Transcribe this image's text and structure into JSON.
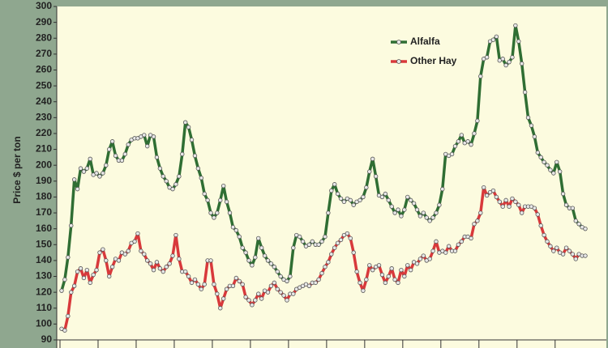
{
  "chart_data": {
    "type": "line",
    "y_label": "Price $ per ton",
    "categories": [
      null,
      null,
      null,
      null,
      null,
      null,
      null,
      null,
      null,
      null,
      null,
      null,
      null,
      null,
      null,
      null,
      null,
      null,
      null,
      null,
      null,
      null,
      null,
      null,
      null,
      null,
      null,
      null,
      null,
      null,
      null,
      null,
      null,
      null,
      null,
      null,
      null,
      null,
      null,
      null,
      null,
      null,
      null,
      null,
      null,
      null,
      null,
      null,
      null,
      null,
      null,
      null,
      null,
      null,
      null,
      null,
      null,
      null,
      null,
      null,
      null,
      null,
      null,
      null,
      null,
      null,
      null,
      null,
      null,
      null,
      null,
      null,
      null,
      null,
      null,
      null,
      null,
      null,
      null,
      null,
      null,
      null,
      null,
      null,
      null,
      null,
      null,
      null,
      null,
      null,
      null,
      null,
      null,
      null,
      null,
      null,
      null,
      null,
      null,
      null,
      null,
      null,
      null,
      null,
      null,
      null,
      null,
      null,
      null,
      null,
      null,
      null,
      null,
      null,
      null,
      null,
      null,
      null,
      null,
      null,
      null,
      null,
      null,
      null,
      null,
      null,
      null,
      null,
      null,
      null,
      null,
      null,
      null,
      null,
      null,
      null,
      null,
      null,
      null,
      null,
      null,
      null,
      null,
      null,
      null,
      null,
      null,
      null,
      null,
      null,
      null,
      null,
      null,
      null,
      null,
      null,
      null,
      null,
      null,
      null,
      null,
      null,
      null,
      null,
      null,
      null
    ],
    "series": [
      {
        "name": "Alfalfa",
        "color": "#2f6e33",
        "values": [
          121,
          128,
          142,
          162,
          191,
          185,
          198,
          196,
          198,
          204,
          194,
          195,
          193,
          195,
          200,
          210,
          215,
          206,
          203,
          203,
          207,
          213,
          216,
          217,
          217,
          218,
          219,
          212,
          219,
          218,
          205,
          198,
          193,
          190,
          186,
          185,
          188,
          193,
          207,
          227,
          224,
          216,
          206,
          198,
          192,
          182,
          178,
          170,
          167,
          170,
          178,
          187,
          177,
          170,
          161,
          159,
          155,
          148,
          145,
          140,
          137,
          142,
          154,
          148,
          143,
          140,
          138,
          136,
          133,
          130,
          128,
          127,
          130,
          148,
          156,
          155,
          152,
          149,
          150,
          152,
          150,
          150,
          152,
          155,
          170,
          184,
          188,
          182,
          179,
          177,
          179,
          178,
          175,
          177,
          178,
          180,
          186,
          196,
          204,
          193,
          181,
          180,
          182,
          178,
          174,
          170,
          172,
          168,
          172,
          180,
          178,
          176,
          172,
          168,
          170,
          167,
          165,
          167,
          170,
          175,
          185,
          207,
          206,
          207,
          212,
          215,
          219,
          214,
          215,
          213,
          220,
          228,
          256,
          267,
          268,
          278,
          279,
          281,
          266,
          267,
          263,
          265,
          268,
          288,
          278,
          264,
          246,
          230,
          225,
          218,
          208,
          205,
          202,
          200,
          197,
          195,
          202,
          196,
          182,
          175,
          173,
          173,
          165,
          163,
          161,
          160
        ]
      },
      {
        "name": "Other Hay",
        "color": "#d8393b",
        "values": [
          97,
          96,
          105,
          120,
          124,
          133,
          135,
          129,
          134,
          126,
          131,
          134,
          145,
          147,
          140,
          130,
          136,
          141,
          140,
          145,
          144,
          146,
          151,
          152,
          157,
          146,
          144,
          140,
          138,
          134,
          139,
          135,
          133,
          136,
          138,
          143,
          156,
          141,
          133,
          133,
          130,
          126,
          128,
          125,
          122,
          125,
          140,
          140,
          125,
          119,
          110,
          116,
          122,
          124,
          124,
          129,
          127,
          125,
          117,
          115,
          112,
          115,
          119,
          116,
          121,
          120,
          124,
          126,
          122,
          120,
          118,
          115,
          119,
          119,
          122,
          123,
          124,
          125,
          124,
          126,
          126,
          128,
          132,
          136,
          139,
          144,
          148,
          151,
          153,
          156,
          157,
          154,
          145,
          133,
          126,
          121,
          128,
          137,
          134,
          136,
          137,
          131,
          126,
          130,
          135,
          128,
          126,
          134,
          130,
          137,
          134,
          139,
          138,
          141,
          143,
          140,
          141,
          146,
          152,
          145,
          146,
          145,
          149,
          146,
          146,
          150,
          152,
          155,
          155,
          154,
          163,
          165,
          170,
          186,
          181,
          183,
          184,
          180,
          177,
          174,
          178,
          174,
          179,
          177,
          175,
          170,
          174,
          174,
          174,
          173,
          169,
          162,
          156,
          152,
          149,
          146,
          148,
          145,
          144,
          148,
          146,
          144,
          141,
          144,
          143,
          143
        ]
      }
    ],
    "ylim": [
      90,
      300
    ],
    "yticks": [
      90,
      100,
      110,
      120,
      130,
      140,
      150,
      160,
      170,
      180,
      190,
      200,
      210,
      220,
      230,
      240,
      250,
      260,
      270,
      280,
      290,
      300
    ],
    "grid": false,
    "legend": "upper-right"
  }
}
